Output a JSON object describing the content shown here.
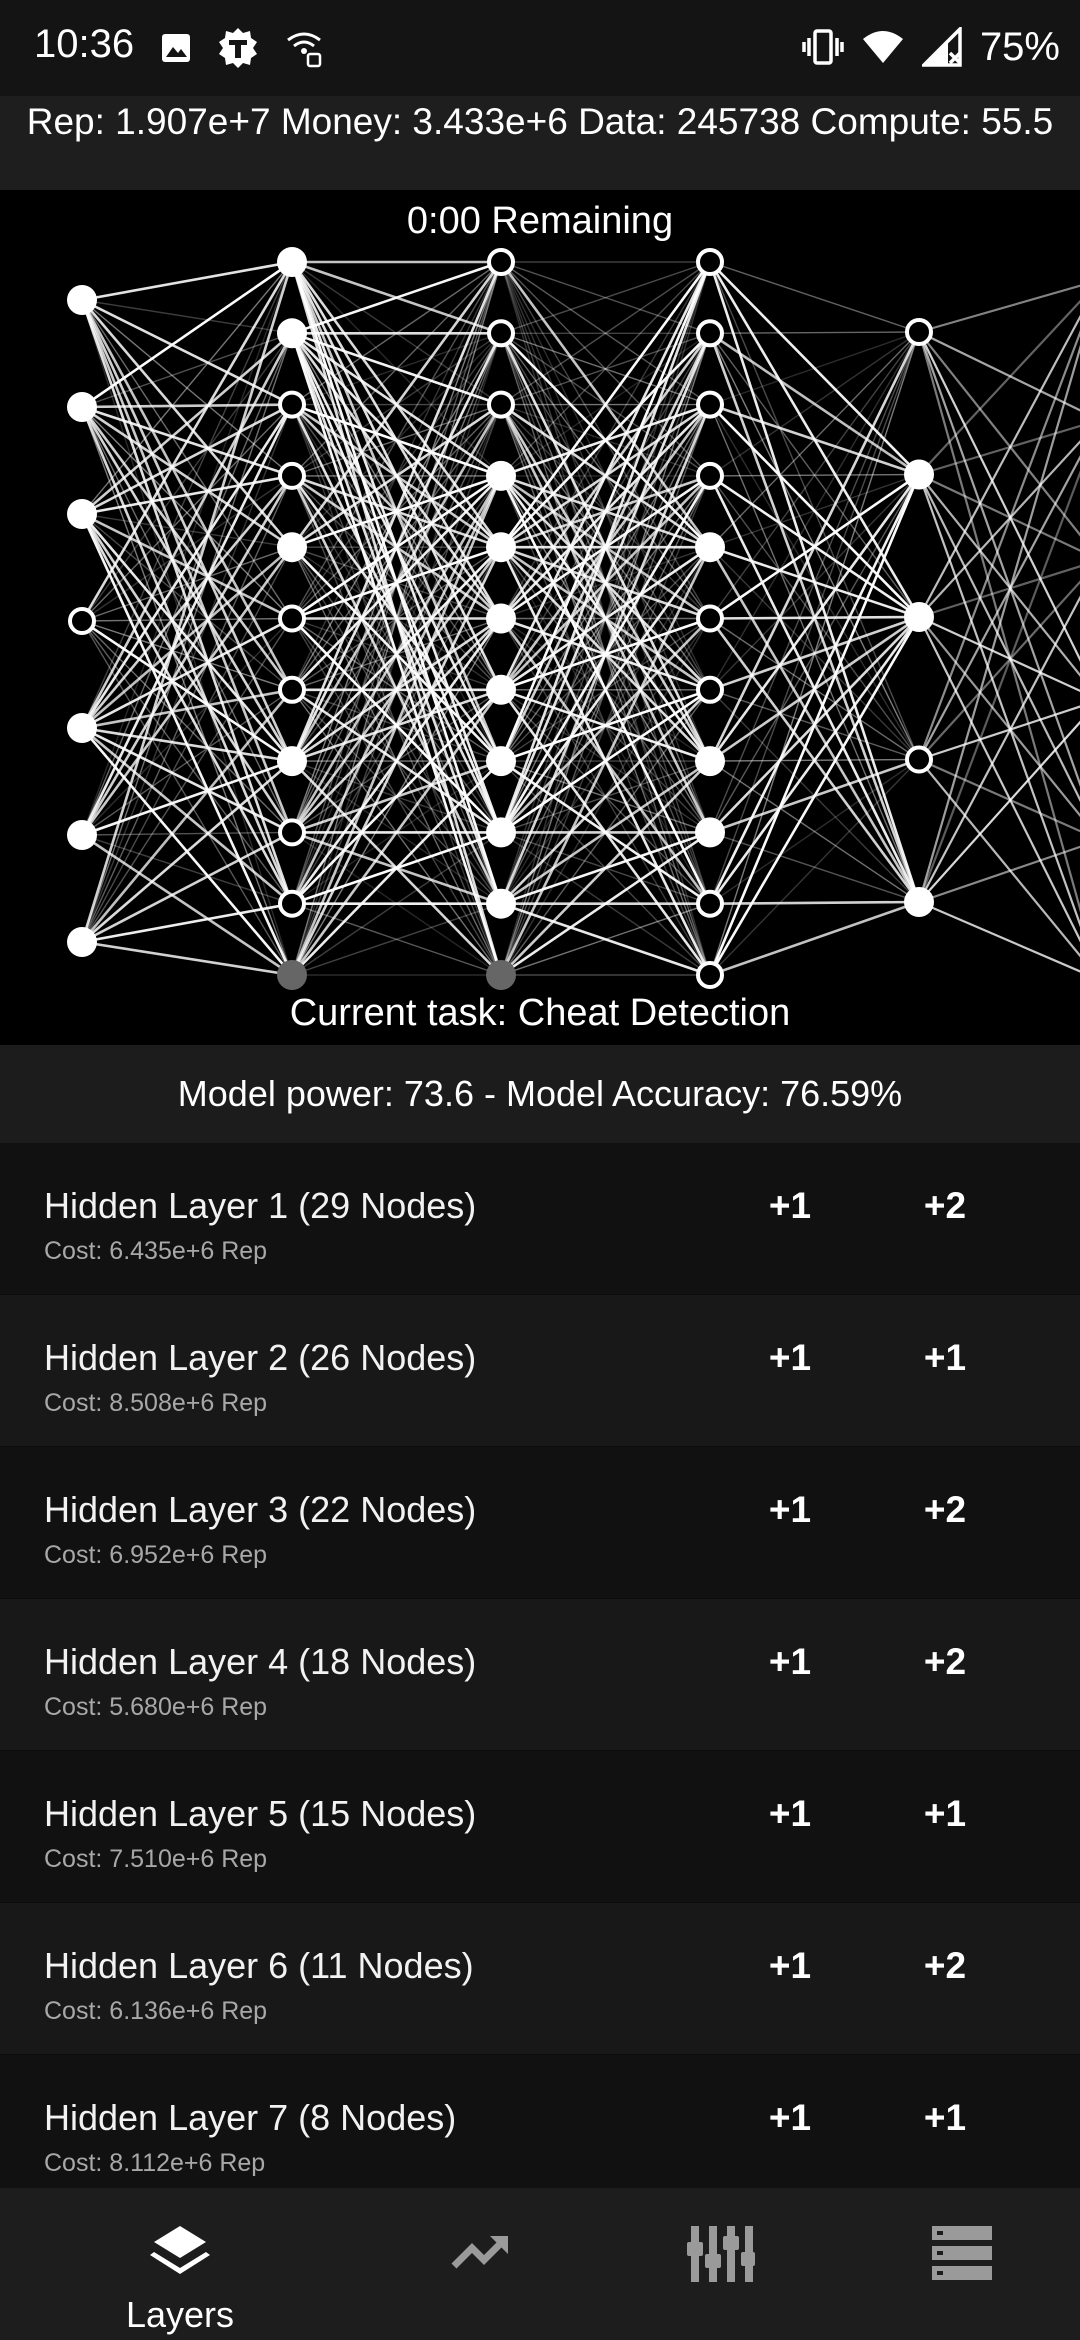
{
  "status": {
    "time": "10:36",
    "battery": "75%",
    "left_icons": [
      "image-icon",
      "app-t-icon",
      "wifi-calling-icon"
    ],
    "right_icons": [
      "vibrate-icon",
      "wifi-icon",
      "signal-off-icon"
    ]
  },
  "resources": {
    "text": "Rep: 1.907e+7 Money: 3.433e+6 Data: 245738 Compute: 55.5"
  },
  "network": {
    "timer": "0:00 Remaining",
    "task": "Current task: Cheat Detection",
    "columns": [
      {
        "nodes": [
          1,
          1,
          1,
          0,
          1,
          1,
          1
        ]
      },
      {
        "nodes": [
          1,
          1,
          0,
          0,
          1,
          0,
          0,
          1,
          0,
          0,
          2
        ]
      },
      {
        "nodes": [
          0,
          0,
          0,
          1,
          1,
          1,
          1,
          1,
          1,
          1,
          2
        ]
      },
      {
        "nodes": [
          0,
          0,
          0,
          0,
          1,
          0,
          0,
          1,
          1,
          0,
          0
        ]
      },
      {
        "nodes": [
          0,
          1,
          1,
          0,
          1
        ]
      }
    ]
  },
  "model": {
    "stats": "Model power: 73.6 - Model Accuracy: 76.59%"
  },
  "layers": [
    {
      "name": "Hidden Layer 1 (29 Nodes)",
      "cost": "Cost: 6.435e+6 Rep",
      "btn_a": "+1",
      "btn_b": "+2"
    },
    {
      "name": "Hidden Layer 2 (26 Nodes)",
      "cost": "Cost: 8.508e+6 Rep",
      "btn_a": "+1",
      "btn_b": "+1"
    },
    {
      "name": "Hidden Layer 3 (22 Nodes)",
      "cost": "Cost: 6.952e+6 Rep",
      "btn_a": "+1",
      "btn_b": "+2"
    },
    {
      "name": "Hidden Layer 4 (18 Nodes)",
      "cost": "Cost: 5.680e+6 Rep",
      "btn_a": "+1",
      "btn_b": "+2"
    },
    {
      "name": "Hidden Layer 5 (15 Nodes)",
      "cost": "Cost: 7.510e+6 Rep",
      "btn_a": "+1",
      "btn_b": "+1"
    },
    {
      "name": "Hidden Layer 6 (11 Nodes)",
      "cost": "Cost: 6.136e+6 Rep",
      "btn_a": "+1",
      "btn_b": "+2"
    },
    {
      "name": "Hidden Layer 7 (8 Nodes)",
      "cost": "Cost: 8.112e+6 Rep",
      "btn_a": "+1",
      "btn_b": "+1"
    }
  ],
  "nav": {
    "active": "Layers",
    "items": [
      {
        "icon": "layers-icon",
        "label": "Layers"
      },
      {
        "icon": "trending-up-icon",
        "label": ""
      },
      {
        "icon": "equalizer-icon",
        "label": ""
      },
      {
        "icon": "storage-icon",
        "label": ""
      }
    ]
  }
}
